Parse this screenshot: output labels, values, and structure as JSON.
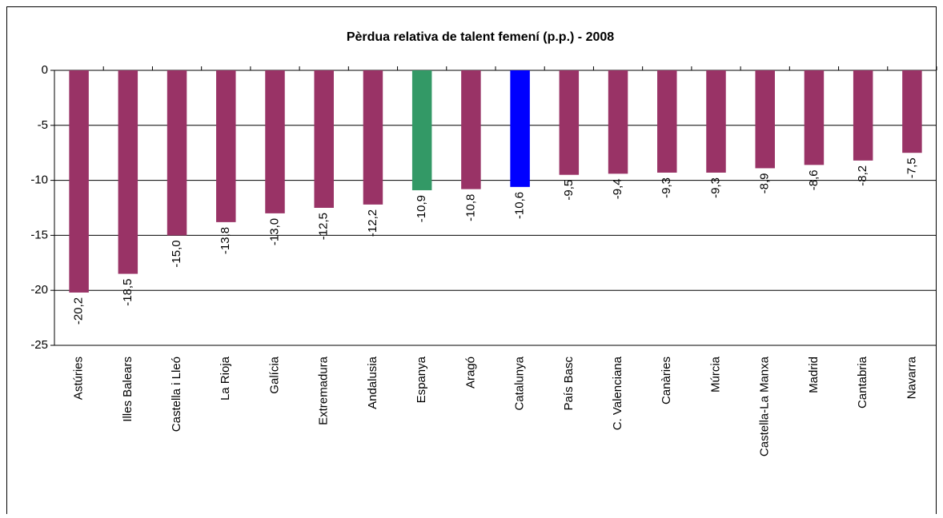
{
  "chart_data": {
    "type": "bar",
    "title": "Pèrdua relativa de talent femení (p.p.) - 2008",
    "categories": [
      "Astúries",
      "Illes Balears",
      "Castella i Lleó",
      "La Rioja",
      "Galícia",
      "Extremadura",
      "Andalusia",
      "Espanya",
      "Aragó",
      "Catalunya",
      "País Basc",
      "C. Valenciana",
      "Canàries",
      "Múrcia",
      "Castella-La Manxa",
      "Madrid",
      "Cantabria",
      "Navarra"
    ],
    "values": [
      -20.2,
      -18.5,
      -15.0,
      -13.8,
      -13.0,
      -12.5,
      -12.2,
      -10.9,
      -10.8,
      -10.6,
      -9.5,
      -9.4,
      -9.3,
      -9.3,
      -8.9,
      -8.6,
      -8.2,
      -7.5
    ],
    "value_labels": [
      "-20,2",
      "-18,5",
      "-15,0",
      "-13,8",
      "-13,0",
      "-12,5",
      "-12,2",
      "-10,9",
      "-10,8",
      "-10,6",
      "-9,5",
      "-9,4",
      "-9,3",
      "-9,3",
      "-8,9",
      "-8,6",
      "-8,2",
      "-7,5"
    ],
    "colors": [
      "#993366",
      "#993366",
      "#993366",
      "#993366",
      "#993366",
      "#993366",
      "#993366",
      "#339966",
      "#993366",
      "#0000ff",
      "#993366",
      "#993366",
      "#993366",
      "#993366",
      "#993366",
      "#993366",
      "#993366",
      "#993366"
    ],
    "ylim": [
      -25,
      0
    ],
    "yticks": [
      0,
      -5,
      -10,
      -15,
      -20,
      -25
    ],
    "grid": true
  }
}
